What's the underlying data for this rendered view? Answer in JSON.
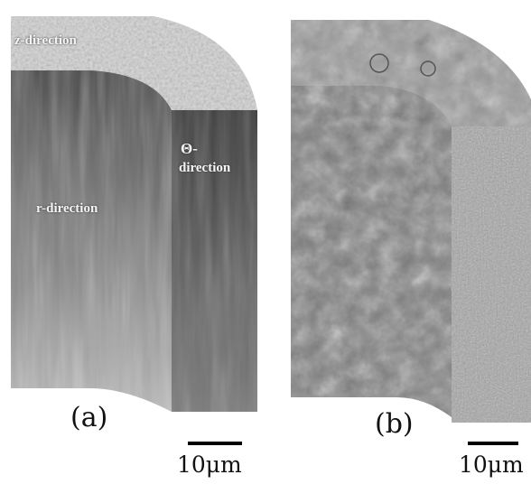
{
  "panel_a": {
    "label": "(a)",
    "z_label": "z-direction",
    "theta_label_line1": "Θ-",
    "theta_label_line2": "direction",
    "r_label": "r-direction",
    "scale_label": "10μm"
  },
  "panel_b": {
    "label": "(b)",
    "scale_label": "10μm"
  }
}
